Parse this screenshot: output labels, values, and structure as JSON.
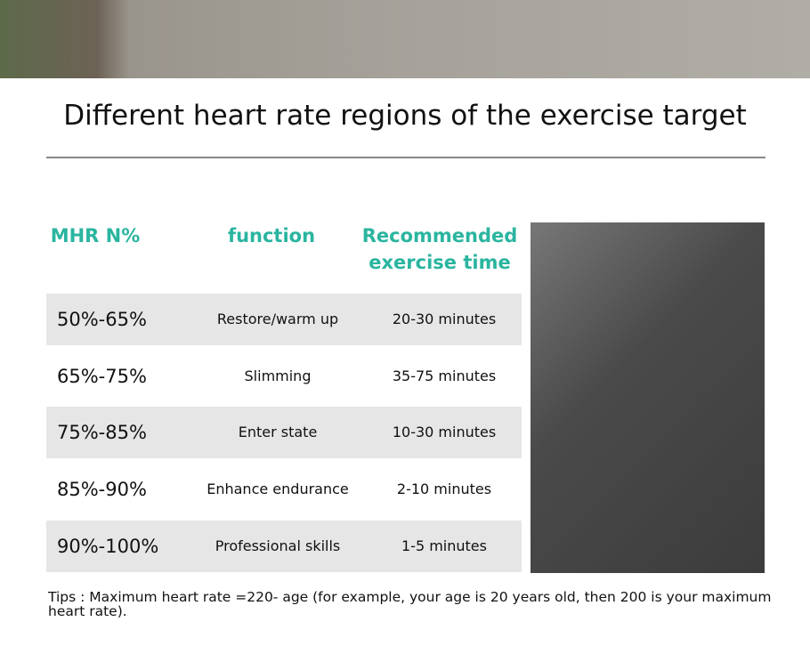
{
  "title": "Different heart rate regions of the exercise target",
  "table": {
    "headers": [
      "MHR N%",
      "function",
      "Recommended exercise time"
    ],
    "rows": [
      [
        "50%-65%",
        "Restore/warm up",
        "20-30 minutes"
      ],
      [
        "65%-75%",
        "Slimming",
        "35-75 minutes"
      ],
      [
        "75%-85%",
        "Enter state",
        "10-30 minutes"
      ],
      [
        "85%-90%",
        "Enhance endurance",
        "2-10 minutes"
      ],
      [
        "90%-100%",
        "Professional skills",
        "1-5 minutes"
      ]
    ]
  },
  "tips": "Tips : Maximum heart rate =220- age (for example, your age is 20 years old, then 200 is your maximum heart rate)."
}
